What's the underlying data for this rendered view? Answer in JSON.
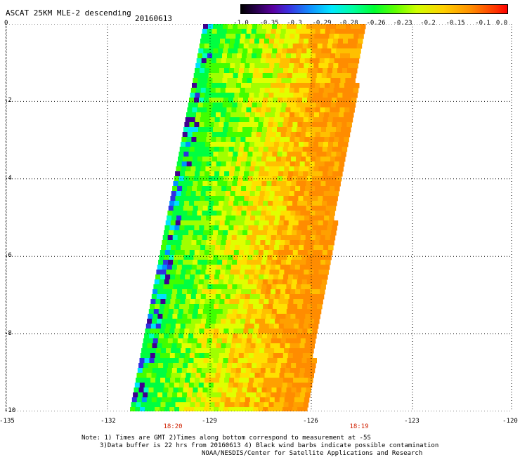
{
  "title": "ASCAT 25KM MLE-2 descending",
  "date": "20160613",
  "colorbar": {
    "labels": [
      "-1.0",
      "-0.35",
      "-0.3",
      "-0.29",
      "-0.28",
      "-0.26",
      "-0.23",
      "-0.2",
      "-0.15",
      "-0.1",
      "0.0"
    ]
  },
  "y_axis": {
    "labels": [
      "0",
      "-2",
      "-4",
      "-6",
      "-8",
      "-10"
    ]
  },
  "x_axis": {
    "labels": [
      "-135",
      "-132",
      "-129",
      "-126",
      "-123",
      "-120"
    ]
  },
  "time_labels": [
    "18:20",
    "18:19"
  ],
  "notes": [
    "Note: 1) Times are GMT 2)Times along bottom correspond to measurement at -5S",
    "3)Data buffer is 22 hrs from 20160613 4) Black wind barbs indicate possible contamination",
    "NOAA/NESDIS/Center for Satellite Applications and Research"
  ],
  "colors": {
    "background": "#ffffff",
    "time_label": "#d02000"
  }
}
